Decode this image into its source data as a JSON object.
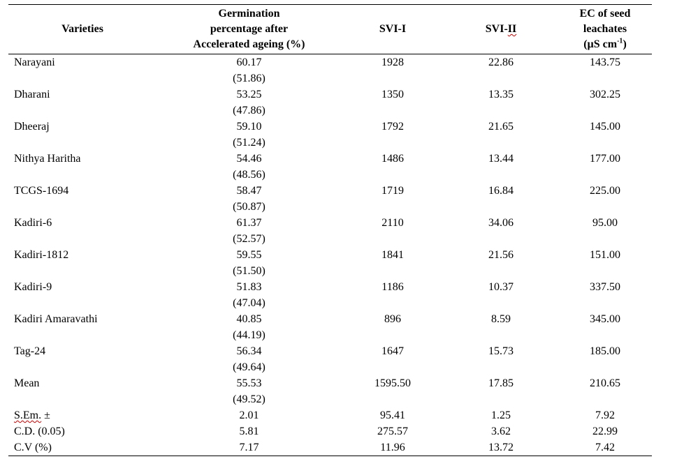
{
  "table": {
    "headers": {
      "varieties": "Varieties",
      "germination": [
        "Germination",
        "percentage after",
        "Accelerated ageing (%)"
      ],
      "svi1": "SVI-I",
      "svi2_prefix": "SVI-",
      "svi2_suffix": "II",
      "ec": [
        "EC of seed",
        "leachates"
      ],
      "ec_unit_base": "(µS cm",
      "ec_unit_sup": "-1",
      "ec_unit_end": ")"
    },
    "rows": [
      {
        "variety": "Narayani",
        "germination": "60.17",
        "germination_transformed": "(51.86)",
        "svi1": "1928",
        "svi2": "22.86",
        "ec": "143.75"
      },
      {
        "variety": "Dharani",
        "germination": "53.25",
        "germination_transformed": "(47.86)",
        "svi1": "1350",
        "svi2": "13.35",
        "ec": "302.25"
      },
      {
        "variety": "Dheeraj",
        "germination": "59.10",
        "germination_transformed": "(51.24)",
        "svi1": "1792",
        "svi2": "21.65",
        "ec": "145.00"
      },
      {
        "variety": "Nithya Haritha",
        "germination": "54.46",
        "germination_transformed": "(48.56)",
        "svi1": "1486",
        "svi2": "13.44",
        "ec": "177.00"
      },
      {
        "variety": "TCGS-1694",
        "germination": "58.47",
        "germination_transformed": "(50.87)",
        "svi1": "1719",
        "svi2": "16.84",
        "ec": "225.00"
      },
      {
        "variety": "Kadiri-6",
        "germination": "61.37",
        "germination_transformed": "(52.57)",
        "svi1": "2110",
        "svi2": "34.06",
        "ec": "95.00"
      },
      {
        "variety": "Kadiri-1812",
        "germination": "59.55",
        "germination_transformed": "(51.50)",
        "svi1": "1841",
        "svi2": "21.56",
        "ec": "151.00"
      },
      {
        "variety": "Kadiri-9",
        "germination": "51.83",
        "germination_transformed": "(47.04)",
        "svi1": "1186",
        "svi2": "10.37",
        "ec": "337.50"
      },
      {
        "variety": "Kadiri Amaravathi",
        "germination": "40.85",
        "germination_transformed": "(44.19)",
        "svi1": "896",
        "svi2": "8.59",
        "ec": "345.00"
      },
      {
        "variety": "Tag-24",
        "germination": "56.34",
        "germination_transformed": "(49.64)",
        "svi1": "1647",
        "svi2": "15.73",
        "ec": "185.00"
      },
      {
        "variety": "Mean",
        "germination": "55.53",
        "germination_transformed": "(49.52)",
        "svi1": "1595.50",
        "svi2": "17.85",
        "ec": "210.65"
      }
    ],
    "stats": [
      {
        "label_main": "S.Em.",
        "label_tail": " ±",
        "germination": "2.01",
        "svi1": "95.41",
        "svi2": "1.25",
        "ec": "7.92"
      },
      {
        "label_main": "C.D. (0.05)",
        "label_tail": "",
        "germination": "5.81",
        "svi1": "275.57",
        "svi2": "3.62",
        "ec": "22.99"
      },
      {
        "label_main": "C.V (%)",
        "label_tail": "",
        "germination": "7.17",
        "svi1": "11.96",
        "svi2": "13.72",
        "ec": "7.42"
      }
    ]
  }
}
